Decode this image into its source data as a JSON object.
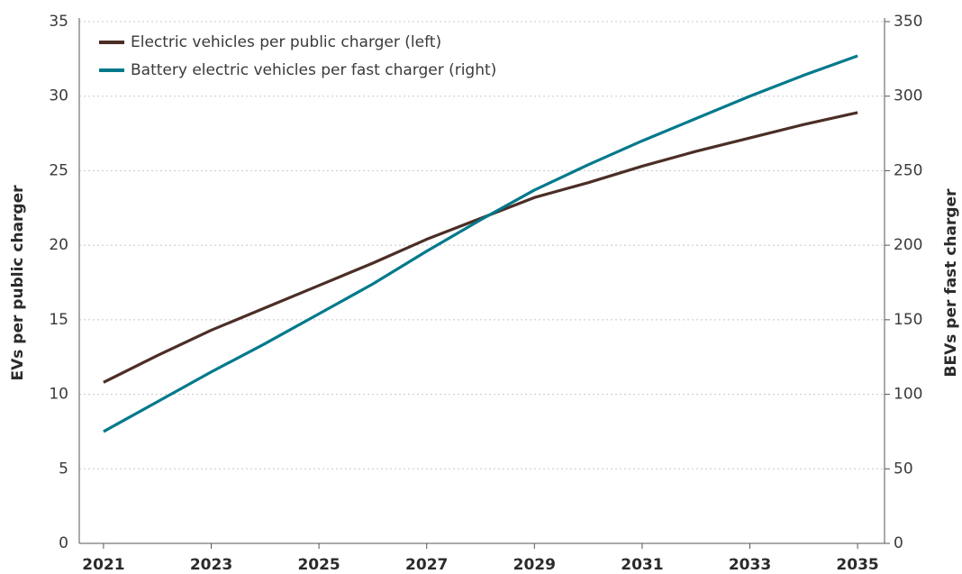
{
  "chart_data": {
    "type": "line",
    "y_label": "EVs per public charger",
    "y2_label": "BEVs per fast charger",
    "x": [
      2021,
      2022,
      2023,
      2024,
      2025,
      2026,
      2027,
      2028,
      2029,
      2030,
      2031,
      2032,
      2033,
      2034,
      2035
    ],
    "series": [
      {
        "name": "Electric vehicles per public charger (left)",
        "color": "#4b2e26",
        "values": [
          10.8,
          12.6,
          14.3,
          15.8,
          17.3,
          18.8,
          20.4,
          21.8,
          23.2,
          24.2,
          25.3,
          26.3,
          27.2,
          28.1,
          28.9
        ]
      },
      {
        "name": "Battery electric vehicles per fast charger (right)",
        "color": "#00798c",
        "axis": "y2",
        "values": [
          75,
          95,
          115,
          134,
          154,
          174,
          196,
          217,
          237,
          254,
          270,
          285,
          300,
          314,
          327
        ]
      }
    ],
    "xlim": [
      2020.55,
      2035.5
    ],
    "xticks": [
      2021,
      2023,
      2025,
      2027,
      2029,
      2031,
      2033,
      2035
    ],
    "ylim": [
      0,
      35
    ],
    "yticks": [
      0,
      5,
      10,
      15,
      20,
      25,
      30,
      35
    ],
    "y2lim": [
      0,
      350
    ],
    "y2ticks": [
      0,
      50,
      100,
      150,
      200,
      250,
      300,
      350
    ],
    "grid": true,
    "legend": "top-left"
  }
}
